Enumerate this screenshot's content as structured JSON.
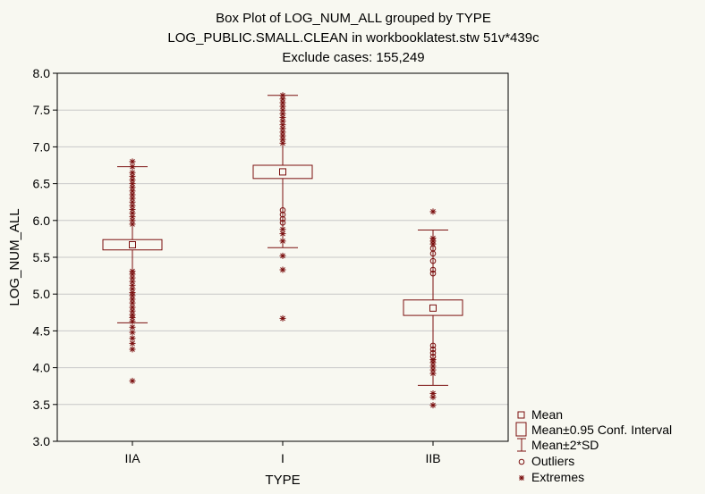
{
  "chart_data": {
    "type": "box",
    "title": "Box Plot of LOG_NUM_ALL grouped by  TYPE",
    "subtitle": "LOG_PUBLIC.SMALL.CLEAN in workbooklatest.stw 51v*439c",
    "subtitle2": "Exclude cases: 155,249",
    "xlabel": "TYPE",
    "ylabel": "LOG_NUM_ALL",
    "ylim": [
      3.0,
      8.0
    ],
    "yticks": [
      "3.0",
      "3.5",
      "4.0",
      "4.5",
      "5.0",
      "5.5",
      "6.0",
      "6.5",
      "7.0",
      "7.5",
      "8.0"
    ],
    "grid": true,
    "legend_position": "bottom-right",
    "legend": [
      "Mean",
      "Mean±0.95 Conf. Interval",
      "Mean±2*SD",
      "Outliers",
      "Extremes"
    ],
    "colors": {
      "mark": "#7b1010",
      "grid": "#c8c8c8",
      "background": "#f8f8f1"
    },
    "categories": [
      {
        "name": "IIA",
        "mean": 5.67,
        "ci_low": 5.6,
        "ci_high": 5.74,
        "sd2_low": 4.61,
        "sd2_high": 6.73,
        "outliers": [],
        "extremes": [
          3.82,
          4.25,
          4.33,
          4.4,
          4.48,
          4.55,
          4.63,
          4.68,
          4.72,
          4.77,
          4.82,
          4.88,
          4.93,
          4.98,
          5.02,
          5.07,
          5.12,
          5.17,
          5.22,
          5.27,
          5.31,
          5.95,
          6.0,
          6.05,
          6.1,
          6.15,
          6.2,
          6.25,
          6.3,
          6.35,
          6.4,
          6.45,
          6.5,
          6.55,
          6.6,
          6.65,
          6.73,
          6.8
        ]
      },
      {
        "name": "I",
        "mean": 6.66,
        "ci_low": 6.57,
        "ci_high": 6.75,
        "sd2_low": 5.63,
        "sd2_high": 7.7,
        "outliers": [
          5.97,
          6.02,
          6.08,
          6.14
        ],
        "extremes": [
          4.67,
          5.33,
          5.52,
          5.72,
          5.82,
          5.88,
          7.05,
          7.1,
          7.15,
          7.2,
          7.25,
          7.3,
          7.35,
          7.4,
          7.45,
          7.5,
          7.55,
          7.6,
          7.65,
          7.7
        ]
      },
      {
        "name": "IIB",
        "mean": 4.81,
        "ci_low": 4.71,
        "ci_high": 4.92,
        "sd2_low": 3.76,
        "sd2_high": 5.87,
        "outliers": [
          4.15,
          4.2,
          4.25,
          4.3,
          5.28,
          5.33,
          5.45,
          5.55,
          5.62
        ],
        "extremes": [
          3.49,
          3.6,
          3.65,
          3.92,
          3.97,
          4.02,
          4.07,
          4.11,
          5.68,
          5.72,
          5.76,
          6.12
        ]
      }
    ]
  }
}
